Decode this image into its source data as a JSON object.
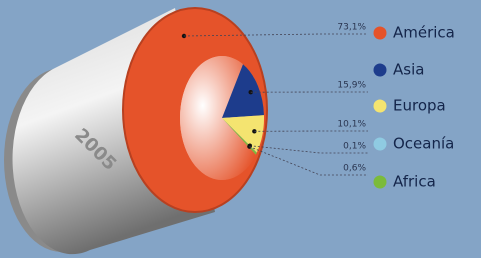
{
  "chart_data": {
    "type": "pie",
    "annotation": "2005",
    "categories": [
      "América",
      "Asia",
      "Europa",
      "Oceanía",
      "Africa"
    ],
    "values": [
      73.1,
      15.9,
      10.1,
      0.1,
      0.6
    ],
    "value_labels": [
      "73,1%",
      "15,9%",
      "10,1%",
      "0,1%",
      "0,6%"
    ],
    "colors": [
      "#e5532a",
      "#1d3c8c",
      "#f4e470",
      "#8fcbe2",
      "#7bbb3b"
    ],
    "legend": "right"
  }
}
